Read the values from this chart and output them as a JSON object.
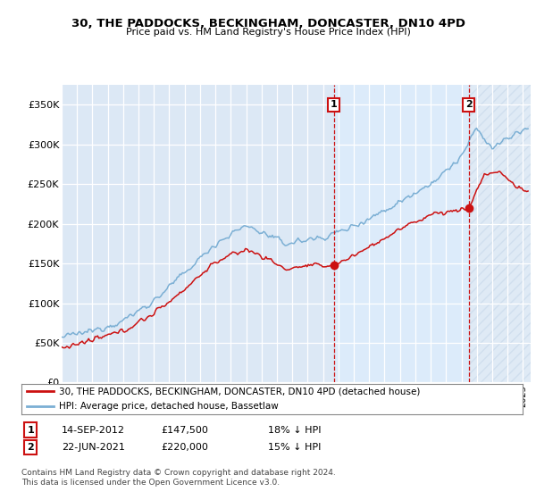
{
  "title": "30, THE PADDOCKS, BECKINGHAM, DONCASTER, DN10 4PD",
  "subtitle": "Price paid vs. HM Land Registry's House Price Index (HPI)",
  "ylabel_ticks": [
    "£0",
    "£50K",
    "£100K",
    "£150K",
    "£200K",
    "£250K",
    "£300K",
    "£350K"
  ],
  "ytick_values": [
    0,
    50000,
    100000,
    150000,
    200000,
    250000,
    300000,
    350000
  ],
  "ylim": [
    0,
    375000
  ],
  "xlim_start": 1995.0,
  "xlim_end": 2025.5,
  "sale1_date": 2012.71,
  "sale1_price": 147500,
  "sale2_date": 2021.47,
  "sale2_price": 220000,
  "legend_line1": "30, THE PADDOCKS, BECKINGHAM, DONCASTER, DN10 4PD (detached house)",
  "legend_line2": "HPI: Average price, detached house, Bassetlaw",
  "table_row1": [
    "1",
    "14-SEP-2012",
    "£147,500",
    "18% ↓ HPI"
  ],
  "table_row2": [
    "2",
    "22-JUN-2021",
    "£220,000",
    "15% ↓ HPI"
  ],
  "footer": "Contains HM Land Registry data © Crown copyright and database right 2024.\nThis data is licensed under the Open Government Licence v3.0.",
  "hpi_color": "#7bafd4",
  "price_color": "#cc1111",
  "vline_color": "#cc1111",
  "bg_color": "#dce8f5",
  "hatch_color": "#c8d8ea",
  "grid_color": "#cccccc"
}
